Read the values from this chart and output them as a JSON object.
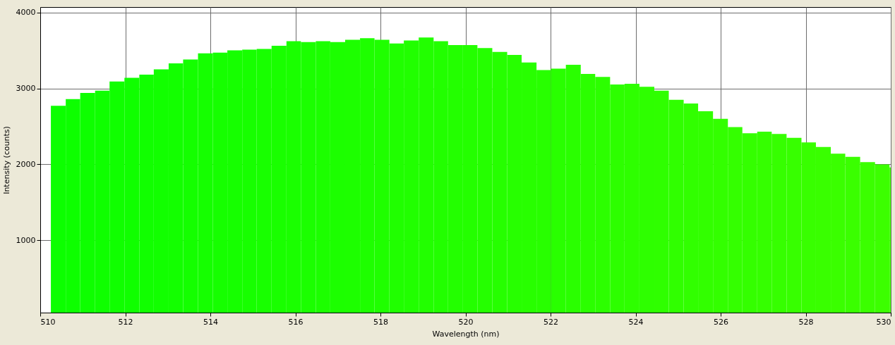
{
  "chart_data": {
    "type": "histogram",
    "xlabel": "Wavelength (nm)",
    "ylabel": "Intensity (counts)",
    "bins": [
      510.25,
      510.6,
      510.94,
      511.29,
      511.63,
      511.98,
      512.33,
      512.67,
      513.02,
      513.36,
      513.71,
      514.06,
      514.4,
      514.75,
      515.09,
      515.44,
      515.79,
      516.13,
      516.48,
      516.82,
      517.17,
      517.52,
      517.86,
      518.21,
      518.55,
      518.9,
      519.25,
      519.59,
      519.94,
      520.28,
      520.63,
      520.98,
      521.32,
      521.67,
      522.01,
      522.36,
      522.71,
      523.05,
      523.4,
      523.74,
      524.09,
      524.44,
      524.78,
      525.13,
      525.47,
      525.82,
      526.17,
      526.51,
      526.86,
      527.2,
      527.55,
      527.9,
      528.24,
      528.59,
      528.93,
      529.28,
      529.63,
      529.97,
      530
    ],
    "values": [
      2770,
      2860,
      2940,
      2970,
      3090,
      3140,
      3180,
      3250,
      3330,
      3380,
      3460,
      3470,
      3500,
      3510,
      3520,
      3560,
      3620,
      3610,
      3620,
      3610,
      3640,
      3660,
      3640,
      3590,
      3630,
      3670,
      3620,
      3570,
      3570,
      3530,
      3480,
      3440,
      3340,
      3240,
      3260,
      3310,
      3190,
      3150,
      3050,
      3060,
      3020,
      2970,
      2850,
      2800,
      2700,
      2600,
      2490,
      2410,
      2430,
      2400,
      2350,
      2290,
      2230,
      2140,
      2100,
      2030,
      2000,
      1960
    ],
    "colors": [
      "#0cff00",
      "#0dff00",
      "#0eff00",
      "#0fff00",
      "#10ff00",
      "#10ff00",
      "#11ff00",
      "#12ff00",
      "#13ff00",
      "#14ff00",
      "#15ff00",
      "#16ff00",
      "#16ff00",
      "#17ff00",
      "#18ff00",
      "#19ff00",
      "#1aff00",
      "#1bff00",
      "#1cff00",
      "#1cff00",
      "#1dff00",
      "#1eff00",
      "#1fff00",
      "#20ff00",
      "#21ff00",
      "#22ff00",
      "#22ff00",
      "#23ff00",
      "#24ff00",
      "#25ff00",
      "#26ff00",
      "#27ff00",
      "#28ff00",
      "#28ff00",
      "#29ff00",
      "#2aff00",
      "#2bff00",
      "#2cff00",
      "#2dff00",
      "#2eff00",
      "#2eff00",
      "#2fff00",
      "#30ff00",
      "#31ff00",
      "#32ff00",
      "#33ff00",
      "#34ff00",
      "#34ff00",
      "#35ff00",
      "#36ff00",
      "#37ff00",
      "#38ff00",
      "#39ff00",
      "#3aff00",
      "#3aff00",
      "#3bff00",
      "#3cff00",
      "#3dff00"
    ],
    "xlim": [
      510,
      530
    ],
    "xticks": [
      510,
      512,
      514,
      516,
      518,
      520,
      522,
      524,
      526,
      528,
      530
    ],
    "ylim": [
      50,
      4070
    ],
    "yticks": [
      1000,
      2000,
      3000,
      4000
    ],
    "grid": true
  }
}
